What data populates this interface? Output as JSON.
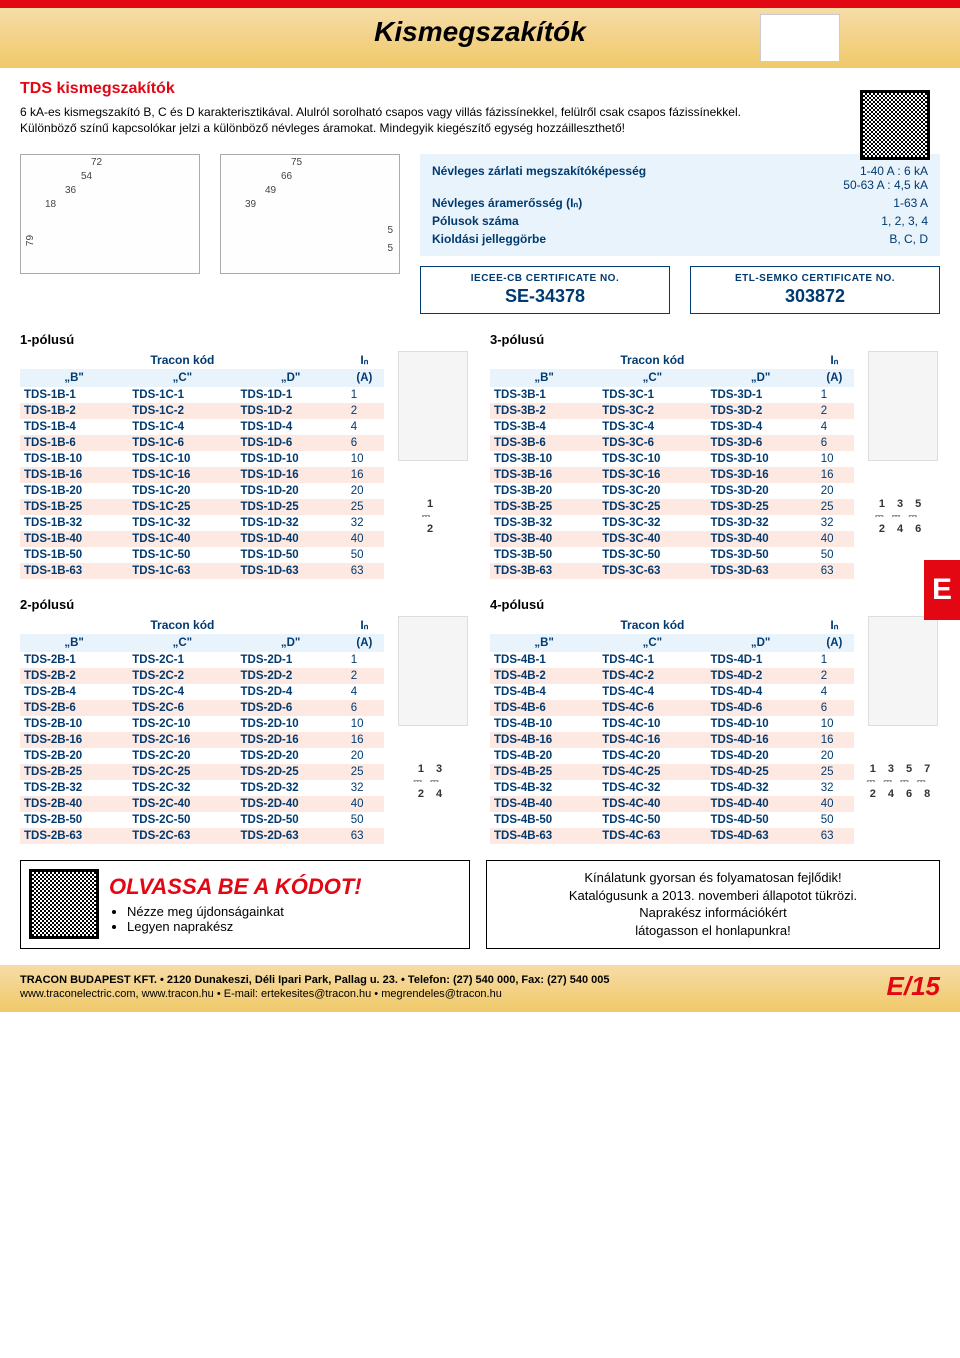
{
  "page_title": "Kismegszakítók",
  "section_title": "TDS kismegszakítók",
  "intro_text": "6 kA-es kismegszakító B, C és D karakterisztikával. Alulról sorolható csapos vagy villás fázissínekkel, felülről csak csapos fázissínekkel. Különböző színű kapcsolókar jelzi a különböző névleges áramokat. Mindegyik kiegészítő egység hozzáilleszthető!",
  "diagram1": {
    "d1": "72",
    "d2": "54",
    "d3": "36",
    "d4": "18",
    "dh": "79"
  },
  "diagram2": {
    "d1": "75",
    "d2": "66",
    "d3": "49",
    "d4": "39",
    "dx": "5",
    "dy": "5"
  },
  "specs": [
    {
      "label": "Névleges zárlati megszakítóképesség",
      "value": "1-40 A : 6 kA\n50-63 A : 4,5 kA"
    },
    {
      "label": "Névleges áramerősség (Iₙ)",
      "value": "1-63 A"
    },
    {
      "label": "Pólusok száma",
      "value": "1, 2, 3, 4"
    },
    {
      "label": "Kioldási jelleggörbe",
      "value": "B, C, D"
    }
  ],
  "cert1": {
    "title": "IECEE-CB CERTIFICATE NO.",
    "value": "SE-34378"
  },
  "cert2": {
    "title": "ETL-SEMKO CERTIFICATE NO.",
    "value": "303872"
  },
  "section_letter": "E",
  "table_header": {
    "super": "Tracon kód",
    "b": "„B\"",
    "c": "„C\"",
    "d": "„D\"",
    "in": "Iₙ",
    "unit": "(A)"
  },
  "poles": [
    {
      "title": "1-pólusú",
      "schematic": {
        "top": [
          "1"
        ],
        "bottom": [
          "2"
        ]
      },
      "rows": [
        {
          "b": "TDS-1B-1",
          "c": "TDS-1C-1",
          "d": "TDS-1D-1",
          "a": "1"
        },
        {
          "b": "TDS-1B-2",
          "c": "TDS-1C-2",
          "d": "TDS-1D-2",
          "a": "2"
        },
        {
          "b": "TDS-1B-4",
          "c": "TDS-1C-4",
          "d": "TDS-1D-4",
          "a": "4"
        },
        {
          "b": "TDS-1B-6",
          "c": "TDS-1C-6",
          "d": "TDS-1D-6",
          "a": "6"
        },
        {
          "b": "TDS-1B-10",
          "c": "TDS-1C-10",
          "d": "TDS-1D-10",
          "a": "10"
        },
        {
          "b": "TDS-1B-16",
          "c": "TDS-1C-16",
          "d": "TDS-1D-16",
          "a": "16"
        },
        {
          "b": "TDS-1B-20",
          "c": "TDS-1C-20",
          "d": "TDS-1D-20",
          "a": "20"
        },
        {
          "b": "TDS-1B-25",
          "c": "TDS-1C-25",
          "d": "TDS-1D-25",
          "a": "25"
        },
        {
          "b": "TDS-1B-32",
          "c": "TDS-1C-32",
          "d": "TDS-1D-32",
          "a": "32"
        },
        {
          "b": "TDS-1B-40",
          "c": "TDS-1C-40",
          "d": "TDS-1D-40",
          "a": "40"
        },
        {
          "b": "TDS-1B-50",
          "c": "TDS-1C-50",
          "d": "TDS-1D-50",
          "a": "50"
        },
        {
          "b": "TDS-1B-63",
          "c": "TDS-1C-63",
          "d": "TDS-1D-63",
          "a": "63"
        }
      ]
    },
    {
      "title": "3-pólusú",
      "schematic": {
        "top": [
          "1",
          "3",
          "5"
        ],
        "bottom": [
          "2",
          "4",
          "6"
        ]
      },
      "rows": [
        {
          "b": "TDS-3B-1",
          "c": "TDS-3C-1",
          "d": "TDS-3D-1",
          "a": "1"
        },
        {
          "b": "TDS-3B-2",
          "c": "TDS-3C-2",
          "d": "TDS-3D-2",
          "a": "2"
        },
        {
          "b": "TDS-3B-4",
          "c": "TDS-3C-4",
          "d": "TDS-3D-4",
          "a": "4"
        },
        {
          "b": "TDS-3B-6",
          "c": "TDS-3C-6",
          "d": "TDS-3D-6",
          "a": "6"
        },
        {
          "b": "TDS-3B-10",
          "c": "TDS-3C-10",
          "d": "TDS-3D-10",
          "a": "10"
        },
        {
          "b": "TDS-3B-16",
          "c": "TDS-3C-16",
          "d": "TDS-3D-16",
          "a": "16"
        },
        {
          "b": "TDS-3B-20",
          "c": "TDS-3C-20",
          "d": "TDS-3D-20",
          "a": "20"
        },
        {
          "b": "TDS-3B-25",
          "c": "TDS-3C-25",
          "d": "TDS-3D-25",
          "a": "25"
        },
        {
          "b": "TDS-3B-32",
          "c": "TDS-3C-32",
          "d": "TDS-3D-32",
          "a": "32"
        },
        {
          "b": "TDS-3B-40",
          "c": "TDS-3C-40",
          "d": "TDS-3D-40",
          "a": "40"
        },
        {
          "b": "TDS-3B-50",
          "c": "TDS-3C-50",
          "d": "TDS-3D-50",
          "a": "50"
        },
        {
          "b": "TDS-3B-63",
          "c": "TDS-3C-63",
          "d": "TDS-3D-63",
          "a": "63"
        }
      ]
    },
    {
      "title": "2-pólusú",
      "schematic": {
        "top": [
          "1",
          "3"
        ],
        "bottom": [
          "2",
          "4"
        ]
      },
      "rows": [
        {
          "b": "TDS-2B-1",
          "c": "TDS-2C-1",
          "d": "TDS-2D-1",
          "a": "1"
        },
        {
          "b": "TDS-2B-2",
          "c": "TDS-2C-2",
          "d": "TDS-2D-2",
          "a": "2"
        },
        {
          "b": "TDS-2B-4",
          "c": "TDS-2C-4",
          "d": "TDS-2D-4",
          "a": "4"
        },
        {
          "b": "TDS-2B-6",
          "c": "TDS-2C-6",
          "d": "TDS-2D-6",
          "a": "6"
        },
        {
          "b": "TDS-2B-10",
          "c": "TDS-2C-10",
          "d": "TDS-2D-10",
          "a": "10"
        },
        {
          "b": "TDS-2B-16",
          "c": "TDS-2C-16",
          "d": "TDS-2D-16",
          "a": "16"
        },
        {
          "b": "TDS-2B-20",
          "c": "TDS-2C-20",
          "d": "TDS-2D-20",
          "a": "20"
        },
        {
          "b": "TDS-2B-25",
          "c": "TDS-2C-25",
          "d": "TDS-2D-25",
          "a": "25"
        },
        {
          "b": "TDS-2B-32",
          "c": "TDS-2C-32",
          "d": "TDS-2D-32",
          "a": "32"
        },
        {
          "b": "TDS-2B-40",
          "c": "TDS-2C-40",
          "d": "TDS-2D-40",
          "a": "40"
        },
        {
          "b": "TDS-2B-50",
          "c": "TDS-2C-50",
          "d": "TDS-2D-50",
          "a": "50"
        },
        {
          "b": "TDS-2B-63",
          "c": "TDS-2C-63",
          "d": "TDS-2D-63",
          "a": "63"
        }
      ]
    },
    {
      "title": "4-pólusú",
      "schematic": {
        "top": [
          "1",
          "3",
          "5",
          "7"
        ],
        "bottom": [
          "2",
          "4",
          "6",
          "8"
        ]
      },
      "rows": [
        {
          "b": "TDS-4B-1",
          "c": "TDS-4C-1",
          "d": "TDS-4D-1",
          "a": "1"
        },
        {
          "b": "TDS-4B-2",
          "c": "TDS-4C-2",
          "d": "TDS-4D-2",
          "a": "2"
        },
        {
          "b": "TDS-4B-4",
          "c": "TDS-4C-4",
          "d": "TDS-4D-4",
          "a": "4"
        },
        {
          "b": "TDS-4B-6",
          "c": "TDS-4C-6",
          "d": "TDS-4D-6",
          "a": "6"
        },
        {
          "b": "TDS-4B-10",
          "c": "TDS-4C-10",
          "d": "TDS-4D-10",
          "a": "10"
        },
        {
          "b": "TDS-4B-16",
          "c": "TDS-4C-16",
          "d": "TDS-4D-16",
          "a": "16"
        },
        {
          "b": "TDS-4B-20",
          "c": "TDS-4C-20",
          "d": "TDS-4D-20",
          "a": "20"
        },
        {
          "b": "TDS-4B-25",
          "c": "TDS-4C-25",
          "d": "TDS-4D-25",
          "a": "25"
        },
        {
          "b": "TDS-4B-32",
          "c": "TDS-4C-32",
          "d": "TDS-4D-32",
          "a": "32"
        },
        {
          "b": "TDS-4B-40",
          "c": "TDS-4C-40",
          "d": "TDS-4D-40",
          "a": "40"
        },
        {
          "b": "TDS-4B-50",
          "c": "TDS-4C-50",
          "d": "TDS-4D-50",
          "a": "50"
        },
        {
          "b": "TDS-4B-63",
          "c": "TDS-4C-63",
          "d": "TDS-4D-63",
          "a": "63"
        }
      ]
    }
  ],
  "promo": {
    "headline": "OLVASSA BE A KÓDOT!",
    "bullets": [
      "Nézze meg újdonságainkat",
      "Legyen naprakész"
    ],
    "right": "Kínálatunk gyorsan és folyamatosan fejlődik!\nKatalógusunk a 2013. novemberi állapotot tükrözi.\nNaprakész információkért\nlátogasson el honlapunkra!"
  },
  "footer": {
    "line1": "TRACON BUDAPEST KFT. • 2120 Dunakeszi, Déli Ipari Park, Pallag u. 23. • Telefon: (27) 540 000, Fax: (27) 540 005",
    "line2": "www.traconelectric.com, www.tracon.hu • E-mail: ertekesites@tracon.hu • megrendeles@tracon.hu",
    "page": "E/15"
  },
  "colors": {
    "accent": "#e30613",
    "spec_bg": "#e9f3fb",
    "stripe": "#fde9e1",
    "header_bg": "#f0c968",
    "text_blue": "#003a70"
  }
}
